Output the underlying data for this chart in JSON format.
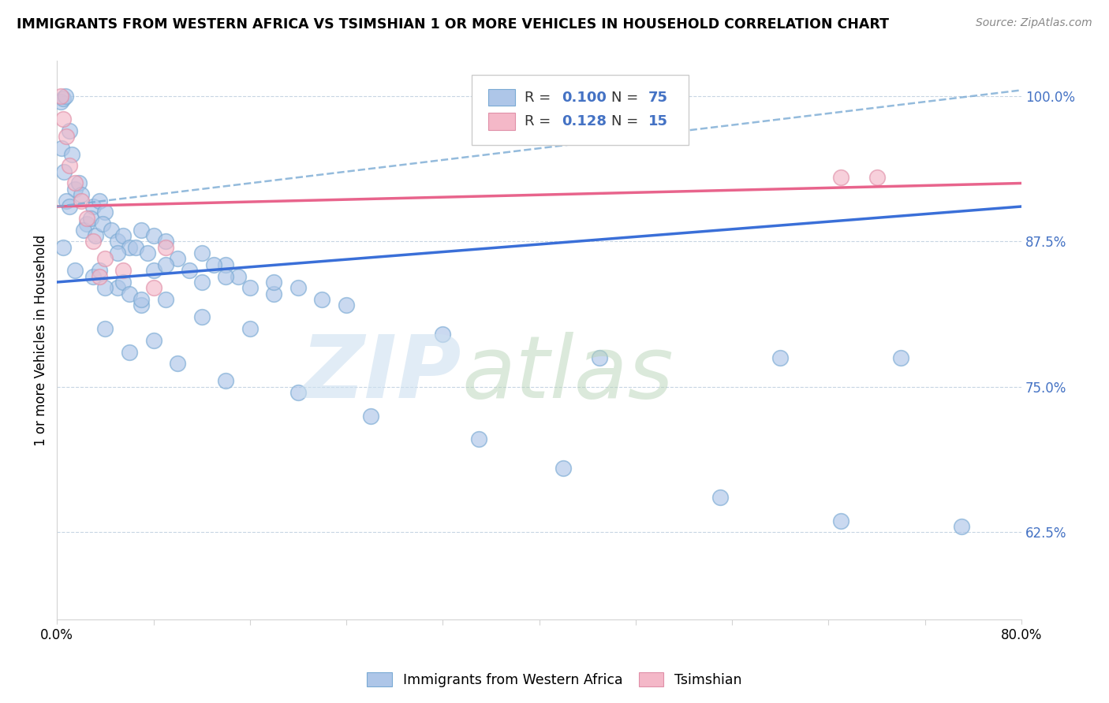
{
  "title": "IMMIGRANTS FROM WESTERN AFRICA VS TSIMSHIAN 1 OR MORE VEHICLES IN HOUSEHOLD CORRELATION CHART",
  "source": "Source: ZipAtlas.com",
  "ylabel": "1 or more Vehicles in Household",
  "ytick_vals": [
    62.5,
    75.0,
    87.5,
    100.0
  ],
  "ytick_labels": [
    "62.5%",
    "75.0%",
    "87.5%",
    "100.0%"
  ],
  "xmin": 0.0,
  "xmax": 80.0,
  "ymin": 55.0,
  "ymax": 103.0,
  "legend_R1": "0.100",
  "legend_N1": "75",
  "legend_R2": "0.128",
  "legend_N2": "15",
  "blue_color": "#aec6e8",
  "blue_edge_color": "#7aaad4",
  "blue_line_color": "#3a6fd8",
  "pink_color": "#f4b8c8",
  "pink_edge_color": "#e090a8",
  "pink_line_color": "#e8648c",
  "dashed_line_color": "#7aaad4",
  "blue_scatter_x": [
    0.3,
    0.5,
    0.7,
    1.0,
    0.4,
    0.6,
    1.2,
    1.5,
    0.8,
    1.0,
    1.8,
    2.0,
    2.5,
    3.0,
    3.5,
    2.2,
    2.8,
    3.2,
    4.0,
    3.8,
    4.5,
    5.0,
    5.5,
    6.0,
    7.0,
    8.0,
    5.0,
    6.5,
    7.5,
    9.0,
    10.0,
    12.0,
    14.0,
    8.0,
    9.0,
    11.0,
    13.0,
    15.0,
    12.0,
    14.0,
    16.0,
    18.0,
    20.0,
    22.0,
    24.0,
    18.0,
    0.5,
    1.5,
    3.0,
    5.0,
    7.0,
    9.0,
    3.5,
    5.5,
    4.0,
    6.0,
    7.0,
    12.0,
    16.0,
    32.0,
    45.0,
    60.0,
    70.0,
    4.0,
    8.0,
    6.0,
    10.0,
    14.0,
    20.0,
    26.0,
    35.0,
    42.0,
    55.0,
    65.0,
    75.0
  ],
  "blue_scatter_y": [
    99.5,
    99.8,
    100.0,
    97.0,
    95.5,
    93.5,
    95.0,
    92.0,
    91.0,
    90.5,
    92.5,
    91.5,
    89.0,
    90.5,
    91.0,
    88.5,
    89.5,
    88.0,
    90.0,
    89.0,
    88.5,
    87.5,
    88.0,
    87.0,
    88.5,
    88.0,
    86.5,
    87.0,
    86.5,
    87.5,
    86.0,
    86.5,
    85.5,
    85.0,
    85.5,
    85.0,
    85.5,
    84.5,
    84.0,
    84.5,
    83.5,
    83.0,
    83.5,
    82.5,
    82.0,
    84.0,
    87.0,
    85.0,
    84.5,
    83.5,
    82.0,
    82.5,
    85.0,
    84.0,
    83.5,
    83.0,
    82.5,
    81.0,
    80.0,
    79.5,
    77.5,
    77.5,
    77.5,
    80.0,
    79.0,
    78.0,
    77.0,
    75.5,
    74.5,
    72.5,
    70.5,
    68.0,
    65.5,
    63.5,
    63.0
  ],
  "pink_scatter_x": [
    0.3,
    0.5,
    0.8,
    1.0,
    1.5,
    2.0,
    2.5,
    3.0,
    4.0,
    5.5,
    8.0,
    9.0,
    65.0,
    68.0,
    3.5
  ],
  "pink_scatter_y": [
    100.0,
    98.0,
    96.5,
    94.0,
    92.5,
    91.0,
    89.5,
    87.5,
    86.0,
    85.0,
    83.5,
    87.0,
    93.0,
    93.0,
    84.5
  ],
  "blue_line_x0": 0.0,
  "blue_line_x1": 80.0,
  "blue_line_y0": 84.0,
  "blue_line_y1": 90.5,
  "pink_line_x0": 0.0,
  "pink_line_x1": 80.0,
  "pink_line_y0": 90.5,
  "pink_line_y1": 92.5,
  "dash_line_x0": 0.0,
  "dash_line_x1": 80.0,
  "dash_line_y0": 90.5,
  "dash_line_y1": 100.5
}
